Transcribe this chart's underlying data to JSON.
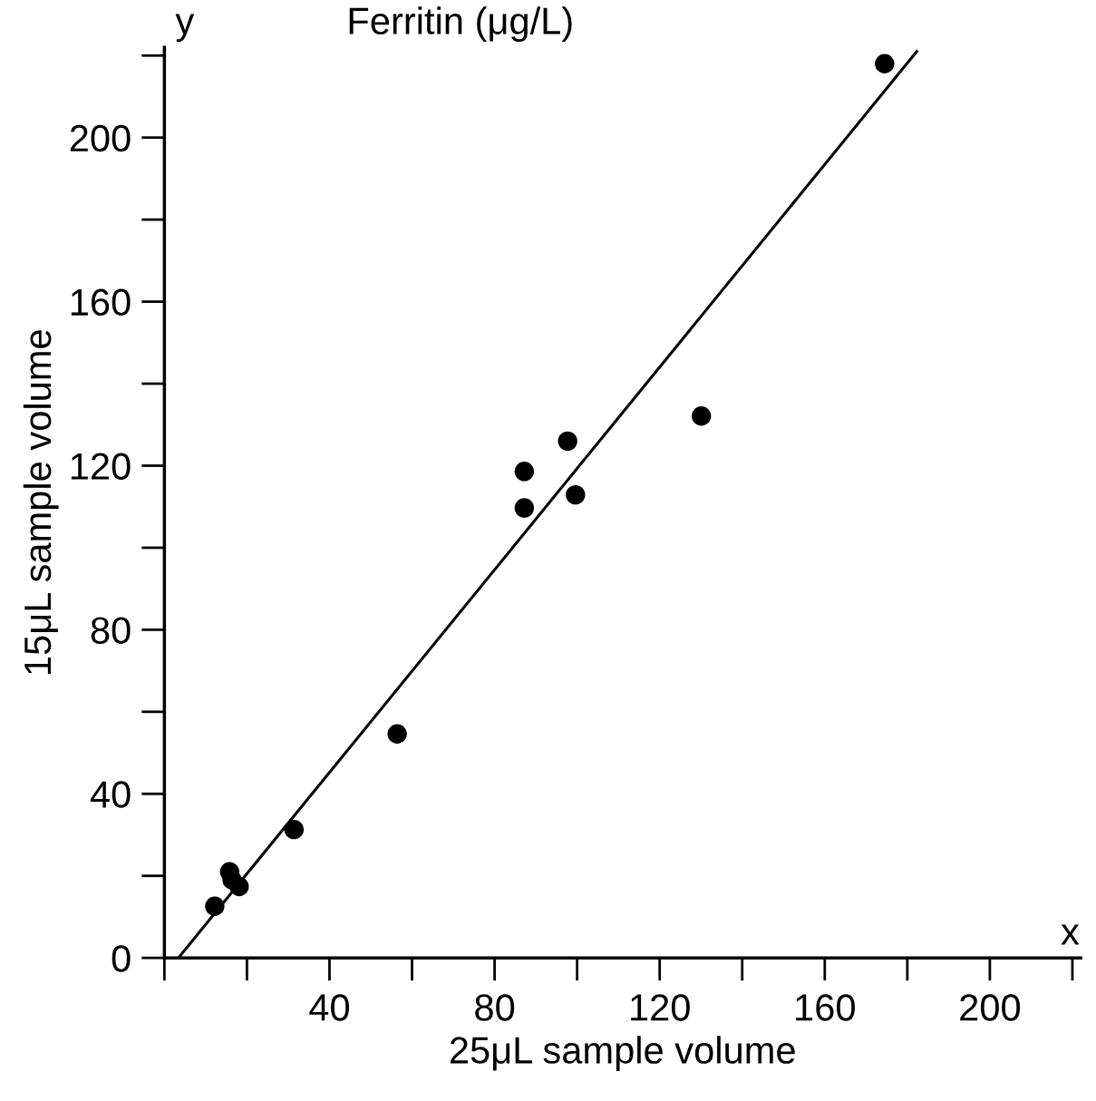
{
  "chart_data": {
    "type": "scatter",
    "title": "Ferritin (μg/L)",
    "xlabel": "25μL sample volume",
    "ylabel": "15μL sample volume",
    "annotations": [
      "y",
      "x"
    ],
    "series": [
      {
        "color": "#000000",
        "marker": "circle",
        "x": [
          12.2,
          15.8,
          16.4,
          18.1,
          31.4,
          56.4,
          87.2,
          87.2,
          97.7,
          99.6,
          130.1,
          174.5
        ],
        "values": [
          12.6,
          21,
          19,
          17.4,
          31.3,
          54.6,
          118.6,
          109.7,
          126,
          112.9,
          132.1,
          218
        ]
      },
      {
        "type": "line",
        "color": "#000000",
        "x": [
          3.4,
          182.3
        ],
        "values": [
          0,
          221
        ]
      }
    ],
    "xlim": [
      0,
      222
    ],
    "ylim": [
      0,
      222
    ],
    "xticks": [
      40,
      80,
      120,
      160,
      200
    ],
    "yticks": [
      0,
      40,
      80,
      120,
      160,
      200
    ],
    "grid": false,
    "legend": false
  }
}
